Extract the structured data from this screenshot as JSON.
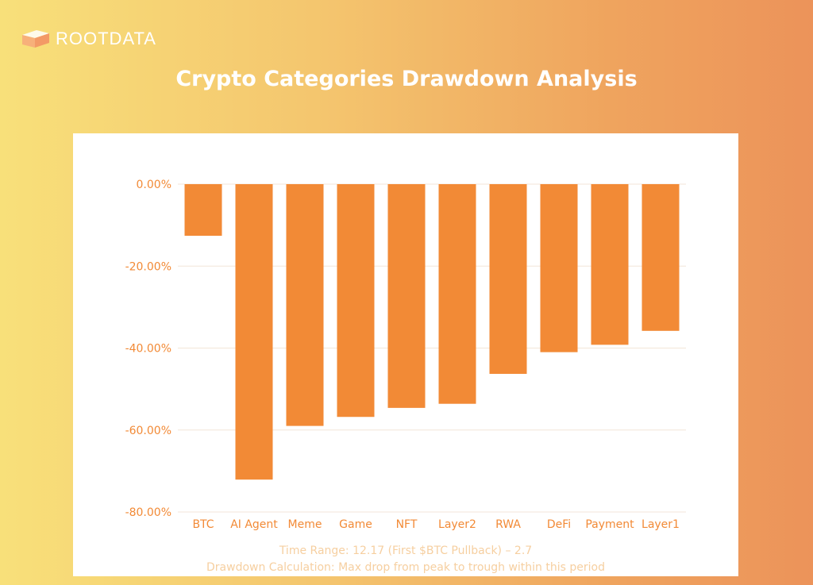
{
  "logo": {
    "text": "ROOTDATA"
  },
  "header": {
    "title": "Crypto Categories Drawdown Analysis"
  },
  "notes": {
    "line1": "Time Range: 12.17 (First $BTC Pullback) – 2.7",
    "line2": "Drawdown Calculation: Max drop from peak to trough within this period"
  },
  "colors": {
    "bar": "#f28a36",
    "tick": "#f28a36",
    "grid": "#f3e6d8"
  },
  "chart_data": {
    "type": "bar",
    "title": "Crypto Categories Drawdown Analysis",
    "xlabel": "",
    "ylabel": "",
    "categories": [
      "BTC",
      "AI Agent",
      "Meme",
      "Game",
      "NFT",
      "Layer2",
      "RWA",
      "DeFi",
      "Payment",
      "Layer1"
    ],
    "values": [
      -12.6,
      -72.1,
      -59.0,
      -56.8,
      -54.6,
      -53.6,
      -46.3,
      -41.0,
      -39.2,
      -35.8
    ],
    "unit": "%",
    "ylim": [
      -80,
      0
    ],
    "yticks": [
      0,
      -20,
      -40,
      -60,
      -80
    ],
    "ytick_labels": [
      "0.00%",
      "-20.00%",
      "-40.00%",
      "-60.00%",
      "-80.00%"
    ],
    "grid": true,
    "legend": "none"
  }
}
